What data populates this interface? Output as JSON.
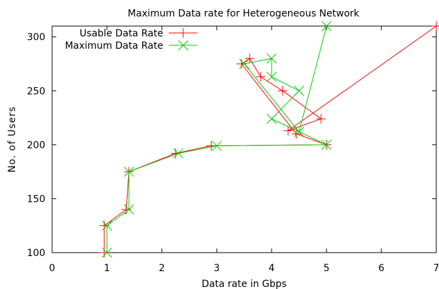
{
  "chart_data": {
    "type": "line",
    "title": "Maximum Data rate for Heterogeneous Network",
    "xlabel": "Data rate in Gbps",
    "ylabel": "No. of Users",
    "xlim": [
      0,
      7
    ],
    "ylim": [
      100,
      310
    ],
    "xticks": [
      "0",
      "1",
      "2",
      "3",
      "4",
      "5",
      "6",
      "7"
    ],
    "yticks": [
      "100",
      "150",
      "200",
      "250",
      "300"
    ],
    "grid": false,
    "legend_position": "top-left",
    "series": [
      {
        "name": "Usable Data Rate",
        "color": "#ff0000",
        "marker": "plus",
        "points": [
          [
            0.95,
            100
          ],
          [
            0.95,
            125
          ],
          [
            1.35,
            140
          ],
          [
            1.4,
            175
          ],
          [
            2.25,
            192
          ],
          [
            2.9,
            199
          ],
          [
            5.0,
            200
          ],
          [
            4.45,
            210
          ],
          [
            3.45,
            275
          ],
          [
            3.6,
            280
          ],
          [
            3.8,
            263
          ],
          [
            4.2,
            250
          ],
          [
            4.9,
            224
          ],
          [
            4.3,
            213
          ],
          [
            7.0,
            310
          ]
        ]
      },
      {
        "name": "Maximum Data Rate",
        "color": "#00cc00",
        "marker": "cross",
        "points": [
          [
            1.0,
            100
          ],
          [
            1.0,
            125
          ],
          [
            1.4,
            140
          ],
          [
            1.4,
            175
          ],
          [
            2.3,
            192
          ],
          [
            3.0,
            199
          ],
          [
            5.0,
            200
          ],
          [
            4.5,
            212
          ],
          [
            3.5,
            275
          ],
          [
            4.0,
            280
          ],
          [
            4.0,
            263
          ],
          [
            4.5,
            250
          ],
          [
            4.0,
            224
          ],
          [
            4.5,
            212
          ],
          [
            5.0,
            310
          ]
        ]
      }
    ]
  }
}
